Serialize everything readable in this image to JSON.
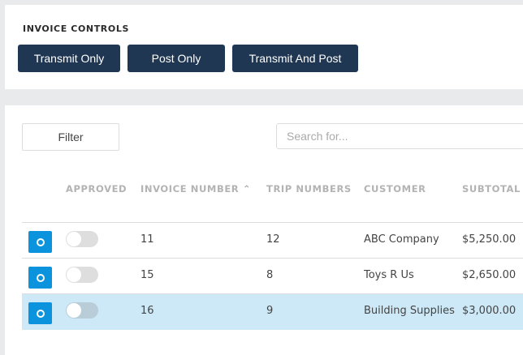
{
  "controls": {
    "title": "INVOICE CONTROLS",
    "buttons": [
      "Transmit Only",
      "Post Only",
      "Transmit And Post"
    ]
  },
  "table": {
    "filter_label": "Filter",
    "search_placeholder": "Search for...",
    "headers": [
      "APPROVED",
      "INVOICE NUMBER",
      "TRIP NUMBERS",
      "CUSTOMER",
      "SUBTOTAL"
    ],
    "sort": {
      "column": "INVOICE NUMBER",
      "direction": "ascending"
    },
    "rows": [
      {
        "approved": false,
        "invoice": "11",
        "trips": "12",
        "customer": "ABC Company",
        "subtotal": "$5,250.00",
        "selected": false
      },
      {
        "approved": false,
        "invoice": "15",
        "trips": "8",
        "customer": "Toys R Us",
        "subtotal": "$2,650.00",
        "selected": false
      },
      {
        "approved": false,
        "invoice": "16",
        "trips": "9",
        "customer": "Building Supplies",
        "subtotal": "$3,000.00",
        "selected": true
      }
    ]
  },
  "colors": {
    "button": "#1f3752",
    "row_button": "#0b93dd",
    "selected_row": "#cde9f7"
  }
}
